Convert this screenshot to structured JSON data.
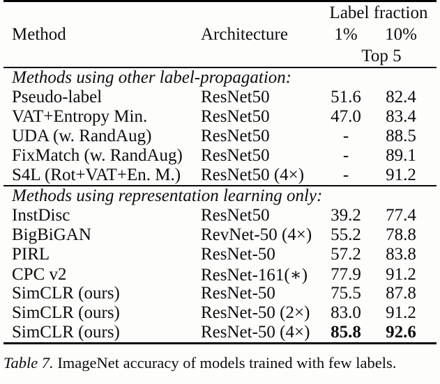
{
  "table": {
    "header": {
      "method": "Method",
      "architecture": "Architecture",
      "group_label": "Label fraction",
      "frac_1": "1%",
      "frac_10": "10%",
      "metric_label": "Top 5"
    },
    "sections": [
      {
        "title": "Methods using other label-propagation:",
        "rows": [
          {
            "method": "Pseudo-label",
            "architecture": "ResNet50",
            "top5_1pct": "51.6",
            "top5_10pct": "82.4"
          },
          {
            "method": "VAT+Entropy Min.",
            "architecture": "ResNet50",
            "top5_1pct": "47.0",
            "top5_10pct": "83.4"
          },
          {
            "method": "UDA (w. RandAug)",
            "architecture": "ResNet50",
            "top5_1pct": "-",
            "top5_10pct": "88.5"
          },
          {
            "method": "FixMatch (w. RandAug)",
            "architecture": "ResNet50",
            "top5_1pct": "-",
            "top5_10pct": "89.1"
          },
          {
            "method": "S4L (Rot+VAT+En. M.)",
            "architecture": "ResNet50 (4×)",
            "top5_1pct": "-",
            "top5_10pct": "91.2"
          }
        ]
      },
      {
        "title": "Methods using representation learning only:",
        "rows": [
          {
            "method": "InstDisc",
            "architecture": "ResNet50",
            "top5_1pct": "39.2",
            "top5_10pct": "77.4"
          },
          {
            "method": "BigBiGAN",
            "architecture": "RevNet-50 (4×)",
            "top5_1pct": "55.2",
            "top5_10pct": "78.8"
          },
          {
            "method": "PIRL",
            "architecture": "ResNet-50",
            "top5_1pct": "57.2",
            "top5_10pct": "83.8"
          },
          {
            "method": "CPC v2",
            "architecture": "ResNet-161(∗)",
            "top5_1pct": "77.9",
            "top5_10pct": "91.2"
          },
          {
            "method": "SimCLR (ours)",
            "architecture": "ResNet-50",
            "top5_1pct": "75.5",
            "top5_10pct": "87.8"
          },
          {
            "method": "SimCLR (ours)",
            "architecture": "ResNet-50 (2×)",
            "top5_1pct": "83.0",
            "top5_10pct": "91.2"
          },
          {
            "method": "SimCLR (ours)",
            "architecture": "ResNet-50 (4×)",
            "top5_1pct": "85.8",
            "top5_10pct": "92.6"
          }
        ]
      }
    ]
  },
  "caption": {
    "label": "Table 7.",
    "text": " ImageNet accuracy of models trained with few labels."
  }
}
